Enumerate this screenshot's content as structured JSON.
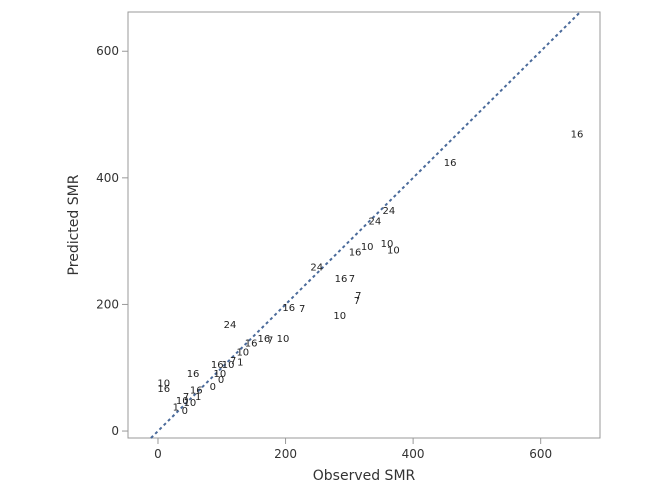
{
  "chart_data": {
    "type": "scatter",
    "x_label": "Observed SMR",
    "y_label": "Predicted SMR",
    "xlim": [
      -47,
      693
    ],
    "ylim": [
      -11,
      662
    ],
    "xticks": [
      0,
      200,
      400,
      600
    ],
    "yticks": [
      0,
      200,
      400,
      600
    ],
    "grid": false,
    "diagonal": true,
    "diagonal_color": "#4a6a9a",
    "color": "#222222",
    "x": [
      657,
      458,
      362,
      340,
      359,
      369,
      328,
      309,
      249,
      287,
      304,
      314,
      312,
      205,
      226,
      285,
      113,
      196,
      176,
      146,
      166,
      133,
      93,
      110,
      118,
      129,
      55,
      97,
      9,
      9,
      99,
      86,
      60,
      63,
      44,
      38,
      50,
      28,
      42
    ],
    "y": [
      470,
      425,
      349,
      333,
      297,
      287,
      292,
      284,
      260,
      242,
      242,
      215,
      207,
      196,
      194,
      183,
      169,
      147,
      145,
      140,
      147,
      126,
      106,
      106,
      112,
      110,
      92,
      92,
      77,
      68,
      82,
      71,
      66,
      55,
      55,
      49,
      46,
      39,
      33
    ],
    "labels": [
      "16",
      "16",
      "24",
      "24",
      "10",
      "10",
      "10",
      "16",
      "24",
      "16",
      "7",
      "7",
      "7",
      "16",
      "7",
      "10",
      "24",
      "10",
      "7",
      "16",
      "16",
      "10",
      "16",
      "10",
      "7",
      "1",
      "16",
      "10",
      "10",
      "16",
      "0",
      "0",
      "16",
      "1",
      "7",
      "10",
      "10",
      "1",
      "0"
    ]
  }
}
